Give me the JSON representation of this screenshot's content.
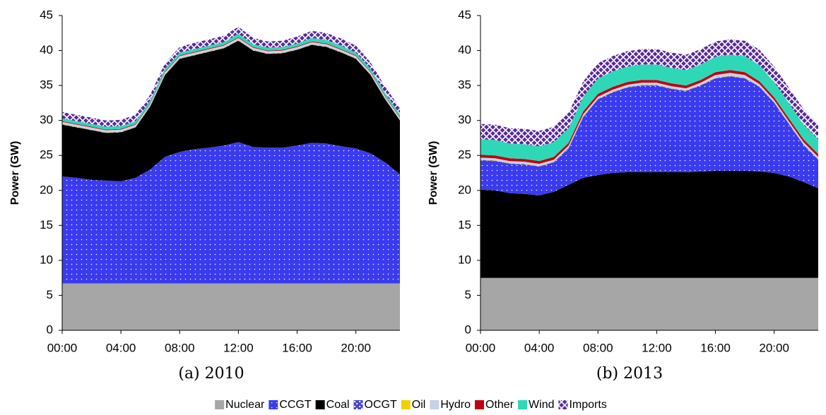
{
  "chart_data": [
    {
      "type": "stacked-area",
      "caption": "(a) 2010",
      "ylabel": "Power (GW)",
      "x": [
        0,
        1,
        2,
        3,
        4,
        5,
        6,
        7,
        8,
        9,
        10,
        11,
        12,
        13,
        14,
        15,
        16,
        17,
        18,
        19,
        20,
        21,
        22,
        23
      ],
      "xlim": [
        0,
        23
      ],
      "xticks": [
        {
          "value": 0,
          "label": "00:00"
        },
        {
          "value": 4,
          "label": "04:00"
        },
        {
          "value": 8,
          "label": "08:00"
        },
        {
          "value": 12,
          "label": "12:00"
        },
        {
          "value": 16,
          "label": "16:00"
        },
        {
          "value": 20,
          "label": "20:00"
        }
      ],
      "ylim": [
        0,
        45
      ],
      "yticks": [
        0,
        5,
        10,
        15,
        20,
        25,
        30,
        35,
        40,
        45
      ],
      "series": [
        {
          "name": "Nuclear",
          "color": "#a6a6a6",
          "pattern": "solid",
          "values": [
            6.7,
            6.7,
            6.7,
            6.7,
            6.7,
            6.7,
            6.7,
            6.7,
            6.7,
            6.7,
            6.7,
            6.7,
            6.7,
            6.7,
            6.7,
            6.7,
            6.7,
            6.7,
            6.7,
            6.7,
            6.7,
            6.7,
            6.7,
            6.7
          ]
        },
        {
          "name": "CCGT",
          "color": "#3a3aee",
          "pattern": "dots",
          "values": [
            15.3,
            15.1,
            14.8,
            14.7,
            14.6,
            15.1,
            16.3,
            18.1,
            18.8,
            19.2,
            19.4,
            19.7,
            20.2,
            19.5,
            19.4,
            19.4,
            19.7,
            20.1,
            20.0,
            19.6,
            19.3,
            18.6,
            17.3,
            15.6
          ]
        },
        {
          "name": "Coal",
          "color": "#000000",
          "pattern": "solid",
          "values": [
            7.4,
            7.2,
            7.1,
            6.8,
            7.0,
            7.2,
            9.0,
            11.7,
            13.3,
            13.4,
            13.7,
            13.9,
            14.5,
            13.8,
            13.4,
            13.5,
            13.7,
            14.0,
            13.8,
            13.4,
            12.8,
            11.2,
            9.0,
            7.7
          ]
        },
        {
          "name": "OCGT",
          "color": "#4848c8",
          "pattern": "grid",
          "values": [
            0.05,
            0.05,
            0.05,
            0.05,
            0.05,
            0.05,
            0.05,
            0.05,
            0.05,
            0.05,
            0.05,
            0.05,
            0.05,
            0.05,
            0.05,
            0.05,
            0.05,
            0.05,
            0.05,
            0.05,
            0.05,
            0.05,
            0.05,
            0.05
          ]
        },
        {
          "name": "Oil",
          "color": "#f2d000",
          "pattern": "solid",
          "values": [
            0.05,
            0.05,
            0.05,
            0.05,
            0.05,
            0.05,
            0.05,
            0.05,
            0.05,
            0.05,
            0.05,
            0.05,
            0.05,
            0.05,
            0.05,
            0.05,
            0.05,
            0.05,
            0.05,
            0.05,
            0.05,
            0.05,
            0.05,
            0.05
          ]
        },
        {
          "name": "Hydro",
          "color": "#c6d0e6",
          "pattern": "solid",
          "values": [
            0.3,
            0.3,
            0.3,
            0.3,
            0.3,
            0.3,
            0.3,
            0.3,
            0.3,
            0.3,
            0.3,
            0.3,
            0.3,
            0.3,
            0.3,
            0.3,
            0.3,
            0.3,
            0.3,
            0.3,
            0.3,
            0.3,
            0.3,
            0.3
          ]
        },
        {
          "name": "Other",
          "color": "#c00010",
          "pattern": "solid",
          "values": [
            0.1,
            0.1,
            0.1,
            0.1,
            0.1,
            0.1,
            0.1,
            0.1,
            0.1,
            0.1,
            0.1,
            0.1,
            0.1,
            0.1,
            0.1,
            0.1,
            0.1,
            0.1,
            0.1,
            0.1,
            0.1,
            0.1,
            0.1,
            0.1
          ]
        },
        {
          "name": "Wind",
          "color": "#2ed8b6",
          "pattern": "solid",
          "values": [
            0.4,
            0.4,
            0.4,
            0.4,
            0.4,
            0.4,
            0.4,
            0.4,
            0.4,
            0.4,
            0.4,
            0.4,
            0.5,
            0.4,
            0.4,
            0.4,
            0.4,
            0.5,
            0.5,
            0.5,
            0.4,
            0.4,
            0.4,
            0.4
          ]
        },
        {
          "name": "Imports",
          "color": "#5a2a98",
          "pattern": "cross",
          "values": [
            0.9,
            0.9,
            0.9,
            0.9,
            0.9,
            0.9,
            0.8,
            0.8,
            0.8,
            0.9,
            0.9,
            0.9,
            1.0,
            0.9,
            0.9,
            0.9,
            1.0,
            1.0,
            1.0,
            1.0,
            1.0,
            0.9,
            0.9,
            0.9
          ]
        }
      ]
    },
    {
      "type": "stacked-area",
      "caption": "(b) 2013",
      "ylabel": "Power (GW)",
      "x": [
        0,
        1,
        2,
        3,
        4,
        5,
        6,
        7,
        8,
        9,
        10,
        11,
        12,
        13,
        14,
        15,
        16,
        17,
        18,
        19,
        20,
        21,
        22,
        23
      ],
      "xlim": [
        0,
        23
      ],
      "xticks": [
        {
          "value": 0,
          "label": "00:00"
        },
        {
          "value": 4,
          "label": "04:00"
        },
        {
          "value": 8,
          "label": "08:00"
        },
        {
          "value": 12,
          "label": "12:00"
        },
        {
          "value": 16,
          "label": "16:00"
        },
        {
          "value": 20,
          "label": "20:00"
        }
      ],
      "ylim": [
        0,
        45
      ],
      "yticks": [
        0,
        5,
        10,
        15,
        20,
        25,
        30,
        35,
        40,
        45
      ],
      "series": [
        {
          "name": "Nuclear",
          "color": "#a6a6a6",
          "pattern": "solid",
          "values": [
            7.5,
            7.5,
            7.5,
            7.5,
            7.5,
            7.5,
            7.5,
            7.5,
            7.5,
            7.5,
            7.5,
            7.5,
            7.5,
            7.5,
            7.5,
            7.5,
            7.5,
            7.5,
            7.5,
            7.5,
            7.5,
            7.5,
            7.5,
            7.5
          ]
        },
        {
          "name": "Coal",
          "color": "#000000",
          "pattern": "solid",
          "values": [
            12.6,
            12.5,
            12.1,
            12.0,
            11.8,
            12.3,
            13.3,
            14.3,
            14.7,
            15.0,
            15.1,
            15.1,
            15.1,
            15.1,
            15.1,
            15.2,
            15.3,
            15.3,
            15.3,
            15.2,
            15.0,
            14.5,
            13.7,
            12.8
          ]
        },
        {
          "name": "CCGT",
          "color": "#3a3aee",
          "pattern": "dots",
          "values": [
            4.2,
            4.2,
            4.2,
            4.2,
            4.1,
            4.2,
            5.2,
            8.7,
            10.8,
            11.5,
            12.1,
            12.4,
            12.4,
            11.9,
            11.6,
            12.3,
            13.2,
            13.5,
            13.2,
            12.1,
            10.0,
            7.5,
            5.3,
            4.1
          ]
        },
        {
          "name": "OCGT",
          "color": "#4848c8",
          "pattern": "grid",
          "values": [
            0.05,
            0.05,
            0.05,
            0.05,
            0.05,
            0.05,
            0.05,
            0.05,
            0.05,
            0.05,
            0.05,
            0.05,
            0.05,
            0.05,
            0.05,
            0.05,
            0.05,
            0.05,
            0.05,
            0.05,
            0.05,
            0.05,
            0.05,
            0.05
          ]
        },
        {
          "name": "Oil",
          "color": "#f2d000",
          "pattern": "solid",
          "values": [
            0.05,
            0.05,
            0.05,
            0.05,
            0.05,
            0.05,
            0.05,
            0.05,
            0.05,
            0.05,
            0.05,
            0.05,
            0.05,
            0.05,
            0.05,
            0.05,
            0.05,
            0.05,
            0.05,
            0.05,
            0.05,
            0.05,
            0.05,
            0.05
          ]
        },
        {
          "name": "Hydro",
          "color": "#c6d0e6",
          "pattern": "solid",
          "values": [
            0.3,
            0.3,
            0.3,
            0.3,
            0.3,
            0.3,
            0.3,
            0.3,
            0.3,
            0.3,
            0.3,
            0.3,
            0.3,
            0.3,
            0.3,
            0.3,
            0.4,
            0.4,
            0.4,
            0.3,
            0.3,
            0.3,
            0.3,
            0.3
          ]
        },
        {
          "name": "Other",
          "color": "#c00010",
          "pattern": "solid",
          "values": [
            0.4,
            0.4,
            0.4,
            0.4,
            0.4,
            0.4,
            0.4,
            0.4,
            0.4,
            0.4,
            0.4,
            0.4,
            0.4,
            0.4,
            0.4,
            0.4,
            0.4,
            0.4,
            0.4,
            0.4,
            0.4,
            0.4,
            0.4,
            0.4
          ]
        },
        {
          "name": "Wind",
          "color": "#2ed8b6",
          "pattern": "solid",
          "values": [
            2.2,
            2.2,
            2.1,
            2.1,
            2.1,
            2.1,
            2.1,
            2.1,
            2.2,
            2.2,
            2.2,
            2.2,
            2.2,
            2.2,
            2.2,
            2.2,
            2.2,
            2.2,
            2.3,
            2.3,
            2.2,
            2.2,
            2.1,
            2.1
          ]
        },
        {
          "name": "Imports",
          "color": "#5a2a98",
          "pattern": "cross",
          "values": [
            2.2,
            2.2,
            2.2,
            2.2,
            2.2,
            2.2,
            2.2,
            2.2,
            2.2,
            2.2,
            2.2,
            2.2,
            2.2,
            2.2,
            2.2,
            2.2,
            2.2,
            2.2,
            2.2,
            2.2,
            2.2,
            2.2,
            2.2,
            2.2
          ]
        }
      ]
    }
  ]
}
